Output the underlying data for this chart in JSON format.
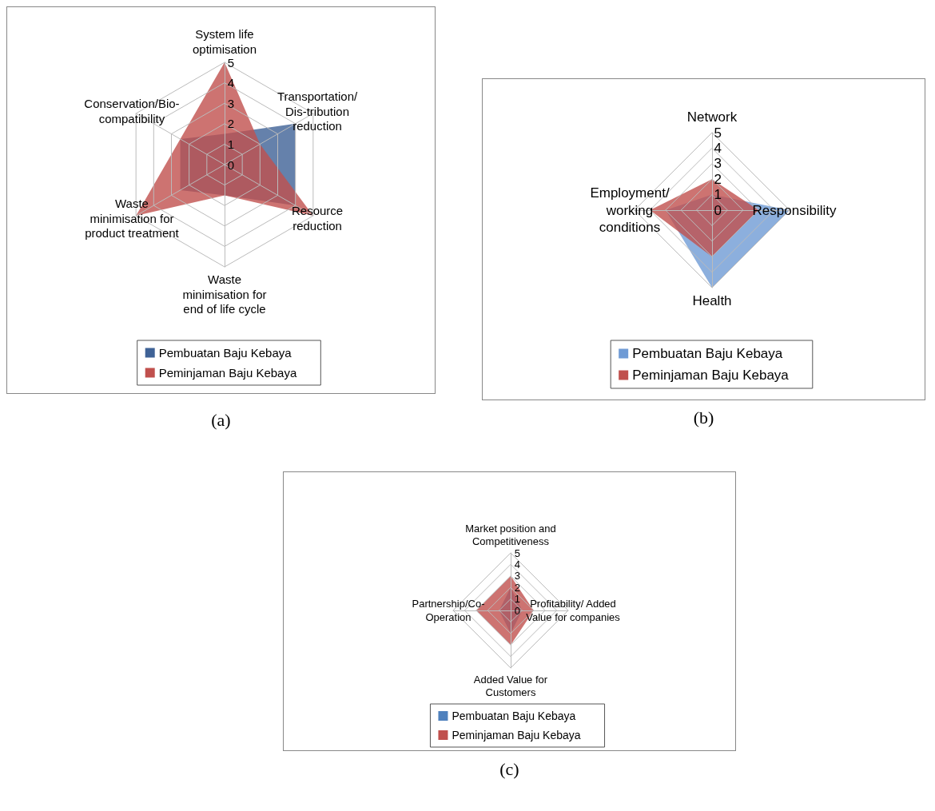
{
  "chart_data": [
    {
      "type": "radar",
      "categories": [
        "System life optimisation",
        "Transportation/Dis-tribution reduction",
        "Resource reduction",
        "Waste minimisation for end of life cycle",
        "Waste minimisation for product treatment",
        "Conservation/Bio-compatibility"
      ],
      "series": [
        {
          "name": "Pembuatan Baju Kebaya",
          "color": "#3f6296",
          "values": [
            1.5,
            4,
            4,
            1.5,
            2.5,
            2.5
          ]
        },
        {
          "name": "Peminjaman Baju Kebaya",
          "color": "#c0504d",
          "values": [
            5,
            2,
            5,
            1.5,
            5,
            2.5
          ]
        }
      ],
      "ylim": [
        0,
        5
      ],
      "yticks": [
        0,
        1,
        2,
        3,
        4,
        5
      ],
      "grid": true,
      "legend": "bottom",
      "annotations": [
        "(a)"
      ]
    },
    {
      "type": "radar",
      "categories": [
        "Network",
        "Responsibility",
        "Health",
        "Employment/working conditions"
      ],
      "series": [
        {
          "name": "Pembuatan Baju Kebaya",
          "color": "#6f9bd5",
          "values": [
            1,
            5,
            5,
            3
          ]
        },
        {
          "name": "Peminjaman Baju Kebaya",
          "color": "#c0504d",
          "values": [
            2,
            3,
            3,
            4
          ]
        }
      ],
      "ylim": [
        0,
        5
      ],
      "yticks": [
        0,
        1,
        2,
        3,
        4,
        5
      ],
      "grid": true,
      "legend": "bottom",
      "annotations": [
        "(b)"
      ]
    },
    {
      "type": "radar",
      "categories": [
        "Market position and Competitiveness",
        "Profitability/ Added Value for companies",
        "Added Value for Customers",
        "Partnership/Co-Operation"
      ],
      "series": [
        {
          "name": "Pembuatan Baju Kebaya",
          "color": "#4f81bd",
          "values": [
            2,
            1,
            2,
            1
          ]
        },
        {
          "name": "Peminjaman Baju Kebaya",
          "color": "#c0504d",
          "values": [
            3,
            2,
            3,
            3
          ]
        }
      ],
      "ylim": [
        0,
        5
      ],
      "yticks": [
        0,
        1,
        2,
        3,
        4,
        5
      ],
      "grid": true,
      "legend": "bottom",
      "annotations": [
        "(c)"
      ]
    }
  ]
}
